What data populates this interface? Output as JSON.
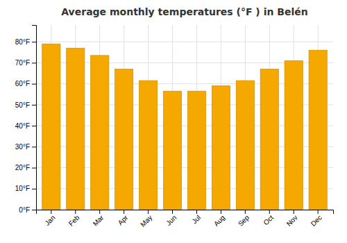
{
  "chart_data": {
    "type": "bar",
    "title": "Average monthly temperatures (°F ) in Belén",
    "categories": [
      "Jan",
      "Feb",
      "Mar",
      "Apr",
      "May",
      "Jun",
      "Jul",
      "Aug",
      "Sep",
      "Oct",
      "Nov",
      "Dec"
    ],
    "values": [
      79,
      77,
      73.5,
      67,
      61.5,
      56.5,
      56.5,
      59,
      61.5,
      67,
      71,
      76
    ],
    "color": "#F5A800",
    "ylim": [
      0,
      88
    ],
    "yticks": [
      {
        "value": 0,
        "label": "0°F"
      },
      {
        "value": 10,
        "label": "10°F"
      },
      {
        "value": 20,
        "label": "20°F"
      },
      {
        "value": 30,
        "label": "30°F"
      },
      {
        "value": 40,
        "label": "40°F"
      },
      {
        "value": 50,
        "label": "50°F"
      },
      {
        "value": 60,
        "label": "60°F"
      },
      {
        "value": 70,
        "label": "70°F"
      },
      {
        "value": 80,
        "label": "80°F"
      }
    ],
    "grid": true
  }
}
